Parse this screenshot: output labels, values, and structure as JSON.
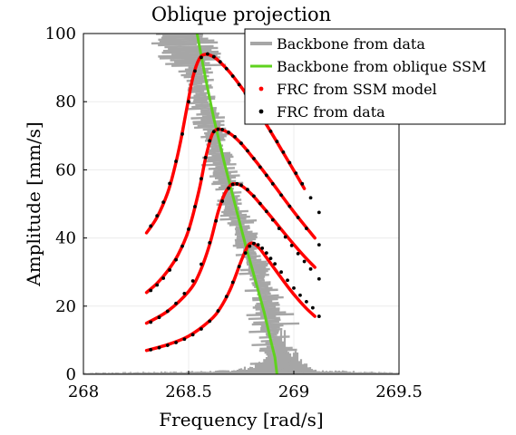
{
  "chart_data": {
    "type": "line",
    "title": "Oblique projection",
    "xlabel": "Frequency [rad/s]",
    "ylabel": "Amplitude [mm/s]",
    "xlim": [
      268,
      269.5
    ],
    "ylim": [
      0,
      100
    ],
    "x_ticks": [
      "268",
      "268.5",
      "269",
      "269.5"
    ],
    "y_ticks": [
      "0",
      "20",
      "40",
      "60",
      "80",
      "100"
    ],
    "grid": true,
    "legend_position": "top-right",
    "legend": [
      {
        "label": "Backbone from data",
        "color": "#a6a6a6",
        "marker": "thick-line"
      },
      {
        "label": "Backbone from oblique SSM",
        "color": "#5fd21e",
        "marker": "line"
      },
      {
        "label": "FRC from SSM model",
        "color": "#ff0000",
        "marker": "dot"
      },
      {
        "label": "FRC from data",
        "color": "#000000",
        "marker": "dot"
      }
    ],
    "series": [
      {
        "name": "Backbone from data",
        "color": "#a6a6a6",
        "style": "noisy-band",
        "x": [
          268.0,
          268.55,
          268.65,
          268.7,
          268.75,
          268.8,
          268.84,
          268.87,
          268.89,
          268.91,
          268.93,
          268.95,
          269.0,
          269.1,
          269.5
        ],
        "y": [
          0.5,
          1.0,
          1.2,
          1.5,
          2.0,
          2.8,
          4.0,
          5.5,
          7.5,
          10.0,
          12.5,
          15.0,
          8.0,
          1.5,
          0.5
        ],
        "backbone_y": [
          100,
          90,
          80,
          70,
          60,
          50,
          40,
          30,
          20,
          12,
          5,
          2
        ],
        "backbone_x": [
          268.46,
          268.53,
          268.57,
          268.62,
          268.66,
          268.71,
          268.77,
          268.83,
          268.88,
          268.9,
          268.91,
          268.91
        ]
      },
      {
        "name": "Backbone from oblique SSM",
        "color": "#5fd21e",
        "x": [
          268.92,
          268.91,
          268.89,
          268.86,
          268.82,
          268.77,
          268.72,
          268.67,
          268.62,
          268.58,
          268.54
        ],
        "y": [
          0,
          5,
          10,
          18,
          27,
          38,
          50,
          62,
          75,
          87,
          100
        ]
      },
      {
        "name": "FRC from SSM model",
        "color": "#ff0000",
        "curves": [
          {
            "x": [
              268.3,
              268.4,
              268.5,
              268.6,
              268.65,
              268.7,
              268.75,
              268.78,
              268.8,
              268.82,
              268.84,
              268.86,
              268.88,
              268.9,
              268.94,
              268.98,
              269.02,
              269.06,
              269.1
            ],
            "y": [
              7.0,
              8.7,
              11.2,
              15.7,
              19.4,
              25.2,
              33.3,
              37.5,
              38.5,
              37.9,
              36.7,
              35.1,
              33.4,
              31.7,
              28.3,
              25.0,
              22.0,
              19.3,
              17.0
            ]
          },
          {
            "x": [
              268.3,
              268.4,
              268.5,
              268.55,
              268.6,
              268.64,
              268.67,
              268.7,
              268.72,
              268.75,
              268.8,
              268.85,
              268.9,
              268.95,
              269.0,
              269.05,
              269.1
            ],
            "y": [
              15.0,
              18.5,
              24.3,
              29.5,
              38.1,
              47.6,
              52.8,
              55.5,
              55.9,
              55.4,
              52.8,
              49.3,
              45.6,
              41.8,
              38.1,
              34.6,
              31.4
            ]
          },
          {
            "x": [
              268.3,
              268.35,
              268.4,
              268.45,
              268.5,
              268.55,
              268.58,
              268.61,
              268.63,
              268.65,
              268.7,
              268.75,
              268.8,
              268.85,
              268.9,
              268.95,
              269.0,
              269.05,
              269.1
            ],
            "y": [
              24.0,
              26.7,
              30.3,
              35.1,
              42.3,
              54.1,
              63.3,
              70.1,
              71.7,
              71.9,
              70.5,
              67.7,
              64.0,
              60.1,
              56.0,
              51.8,
              47.7,
              43.8,
              40.0
            ]
          },
          {
            "x": [
              268.3,
              268.35,
              268.4,
              268.43,
              268.46,
              268.49,
              268.52,
              268.55,
              268.58,
              268.62,
              268.66,
              268.7,
              268.75,
              268.8,
              268.85,
              268.9,
              268.95,
              269.0,
              269.05
            ],
            "y": [
              41.5,
              46.1,
              53.2,
              59.7,
              67.8,
              77.6,
              87.1,
              92.5,
              93.9,
              93.1,
              91.0,
              88.3,
              84.3,
              79.9,
              75.2,
              70.2,
              65.0,
              59.8,
              54.5
            ]
          }
        ]
      },
      {
        "name": "FRC from data",
        "color": "#000000",
        "curves": [
          {
            "x": [
              268.32,
              268.36,
              268.4,
              268.44,
              268.48,
              268.52,
              268.56,
              268.6,
              268.64,
              268.68,
              268.71,
              268.74,
              268.77,
              268.79,
              268.81,
              268.83,
              268.85,
              268.87,
              268.89,
              268.91,
              268.94,
              268.97,
              269.0,
              269.03,
              269.06,
              269.09,
              269.12
            ],
            "y": [
              7.2,
              7.8,
              8.5,
              9.3,
              10.3,
              11.6,
              13.3,
              15.6,
              18.6,
              22.8,
              27.0,
              31.6,
              35.6,
              37.6,
              38.4,
              38.0,
              37.0,
              35.6,
              34.0,
              32.4,
              30.0,
              27.6,
              25.3,
              23.2,
              21.3,
              19.5,
              17.0
            ]
          },
          {
            "x": [
              268.32,
              268.36,
              268.4,
              268.44,
              268.48,
              268.52,
              268.56,
              268.6,
              268.63,
              268.66,
              268.69,
              268.71,
              268.73,
              268.75,
              268.78,
              268.81,
              268.84,
              268.87,
              268.9,
              268.93,
              268.96,
              268.99,
              269.02,
              269.05,
              269.08,
              269.12
            ],
            "y": [
              15.3,
              16.7,
              18.5,
              20.8,
              23.7,
              27.4,
              32.3,
              38.6,
              45.0,
              50.8,
              54.6,
              55.7,
              55.9,
              55.5,
              54.2,
              52.3,
              50.1,
              47.8,
              45.3,
              42.8,
              40.3,
              37.8,
              35.4,
              33.1,
              30.9,
              28.0
            ]
          },
          {
            "x": [
              268.32,
              268.35,
              268.38,
              268.41,
              268.44,
              268.47,
              268.5,
              268.53,
              268.56,
              268.58,
              268.6,
              268.62,
              268.64,
              268.66,
              268.69,
              268.72,
              268.75,
              268.78,
              268.81,
              268.84,
              268.87,
              268.9,
              268.94,
              268.98,
              269.02,
              269.06,
              269.12
            ],
            "y": [
              24.6,
              26.2,
              28.2,
              30.6,
              33.6,
              37.6,
              42.6,
              49.2,
              57.4,
              63.6,
              68.5,
              71.2,
              71.9,
              71.8,
              71.0,
              69.7,
              67.8,
              65.6,
              63.3,
              60.8,
              58.4,
              55.9,
              52.6,
              49.3,
              46.0,
              42.8,
              38.0
            ]
          },
          {
            "x": [
              268.32,
              268.35,
              268.38,
              268.41,
              268.44,
              268.47,
              268.5,
              268.53,
              268.56,
              268.59,
              268.62,
              268.65,
              268.68,
              268.71,
              268.74,
              268.77,
              268.8,
              268.83,
              268.86,
              268.89,
              268.92,
              268.95,
              268.98,
              269.01,
              269.04,
              269.08,
              269.12
            ],
            "y": [
              43.5,
              46.5,
              50.5,
              56.0,
              62.5,
              70.5,
              80.0,
              89.0,
              93.0,
              94.0,
              93.2,
              91.7,
              89.7,
              87.5,
              85.0,
              82.4,
              79.8,
              77.0,
              74.2,
              71.3,
              68.3,
              65.2,
              62.1,
              59.0,
              55.9,
              51.8,
              47.5
            ]
          }
        ]
      }
    ]
  }
}
